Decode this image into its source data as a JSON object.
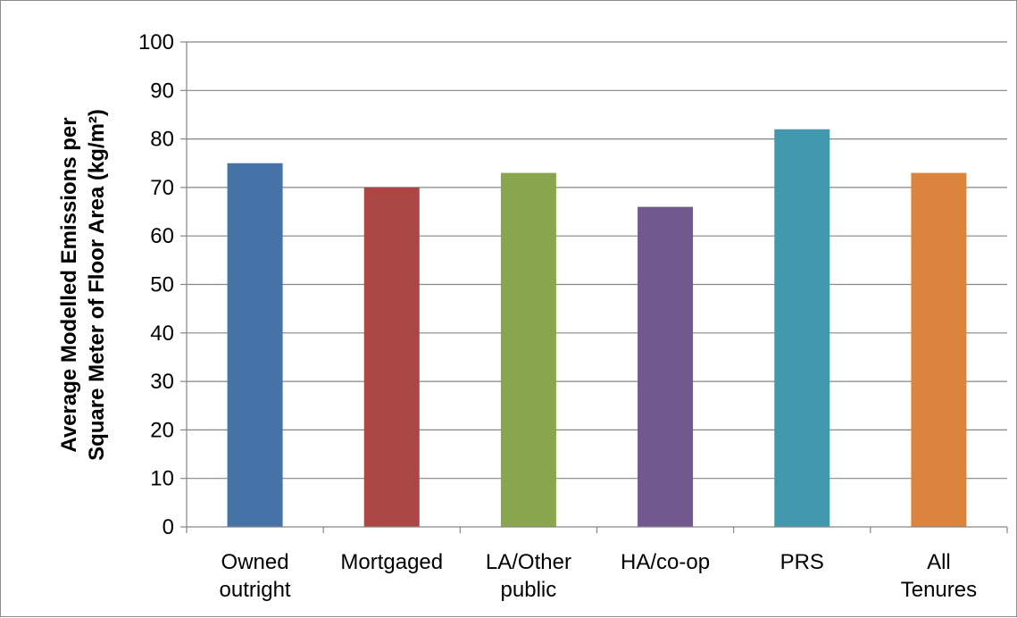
{
  "chart_data": {
    "type": "bar",
    "title": "",
    "xlabel": "",
    "ylabel_lines": [
      "Average Modelled Emissions per",
      "Square Meter of Floor Area (kg/m²)"
    ],
    "categories": [
      [
        "Owned",
        "outright"
      ],
      [
        "Mortgaged"
      ],
      [
        "LA/Other",
        "public"
      ],
      [
        "HA/co-op"
      ],
      [
        "PRS"
      ],
      [
        "All",
        "Tenures"
      ]
    ],
    "values": [
      75,
      70,
      73,
      66,
      82,
      73
    ],
    "colors": [
      "#4572a7",
      "#aa4643",
      "#89a54e",
      "#71588f",
      "#4198af",
      "#db843d"
    ],
    "ylim": [
      0,
      100
    ],
    "yticks": [
      0,
      10,
      20,
      30,
      40,
      50,
      60,
      70,
      80,
      90,
      100
    ],
    "grid": true,
    "legend": "none"
  }
}
